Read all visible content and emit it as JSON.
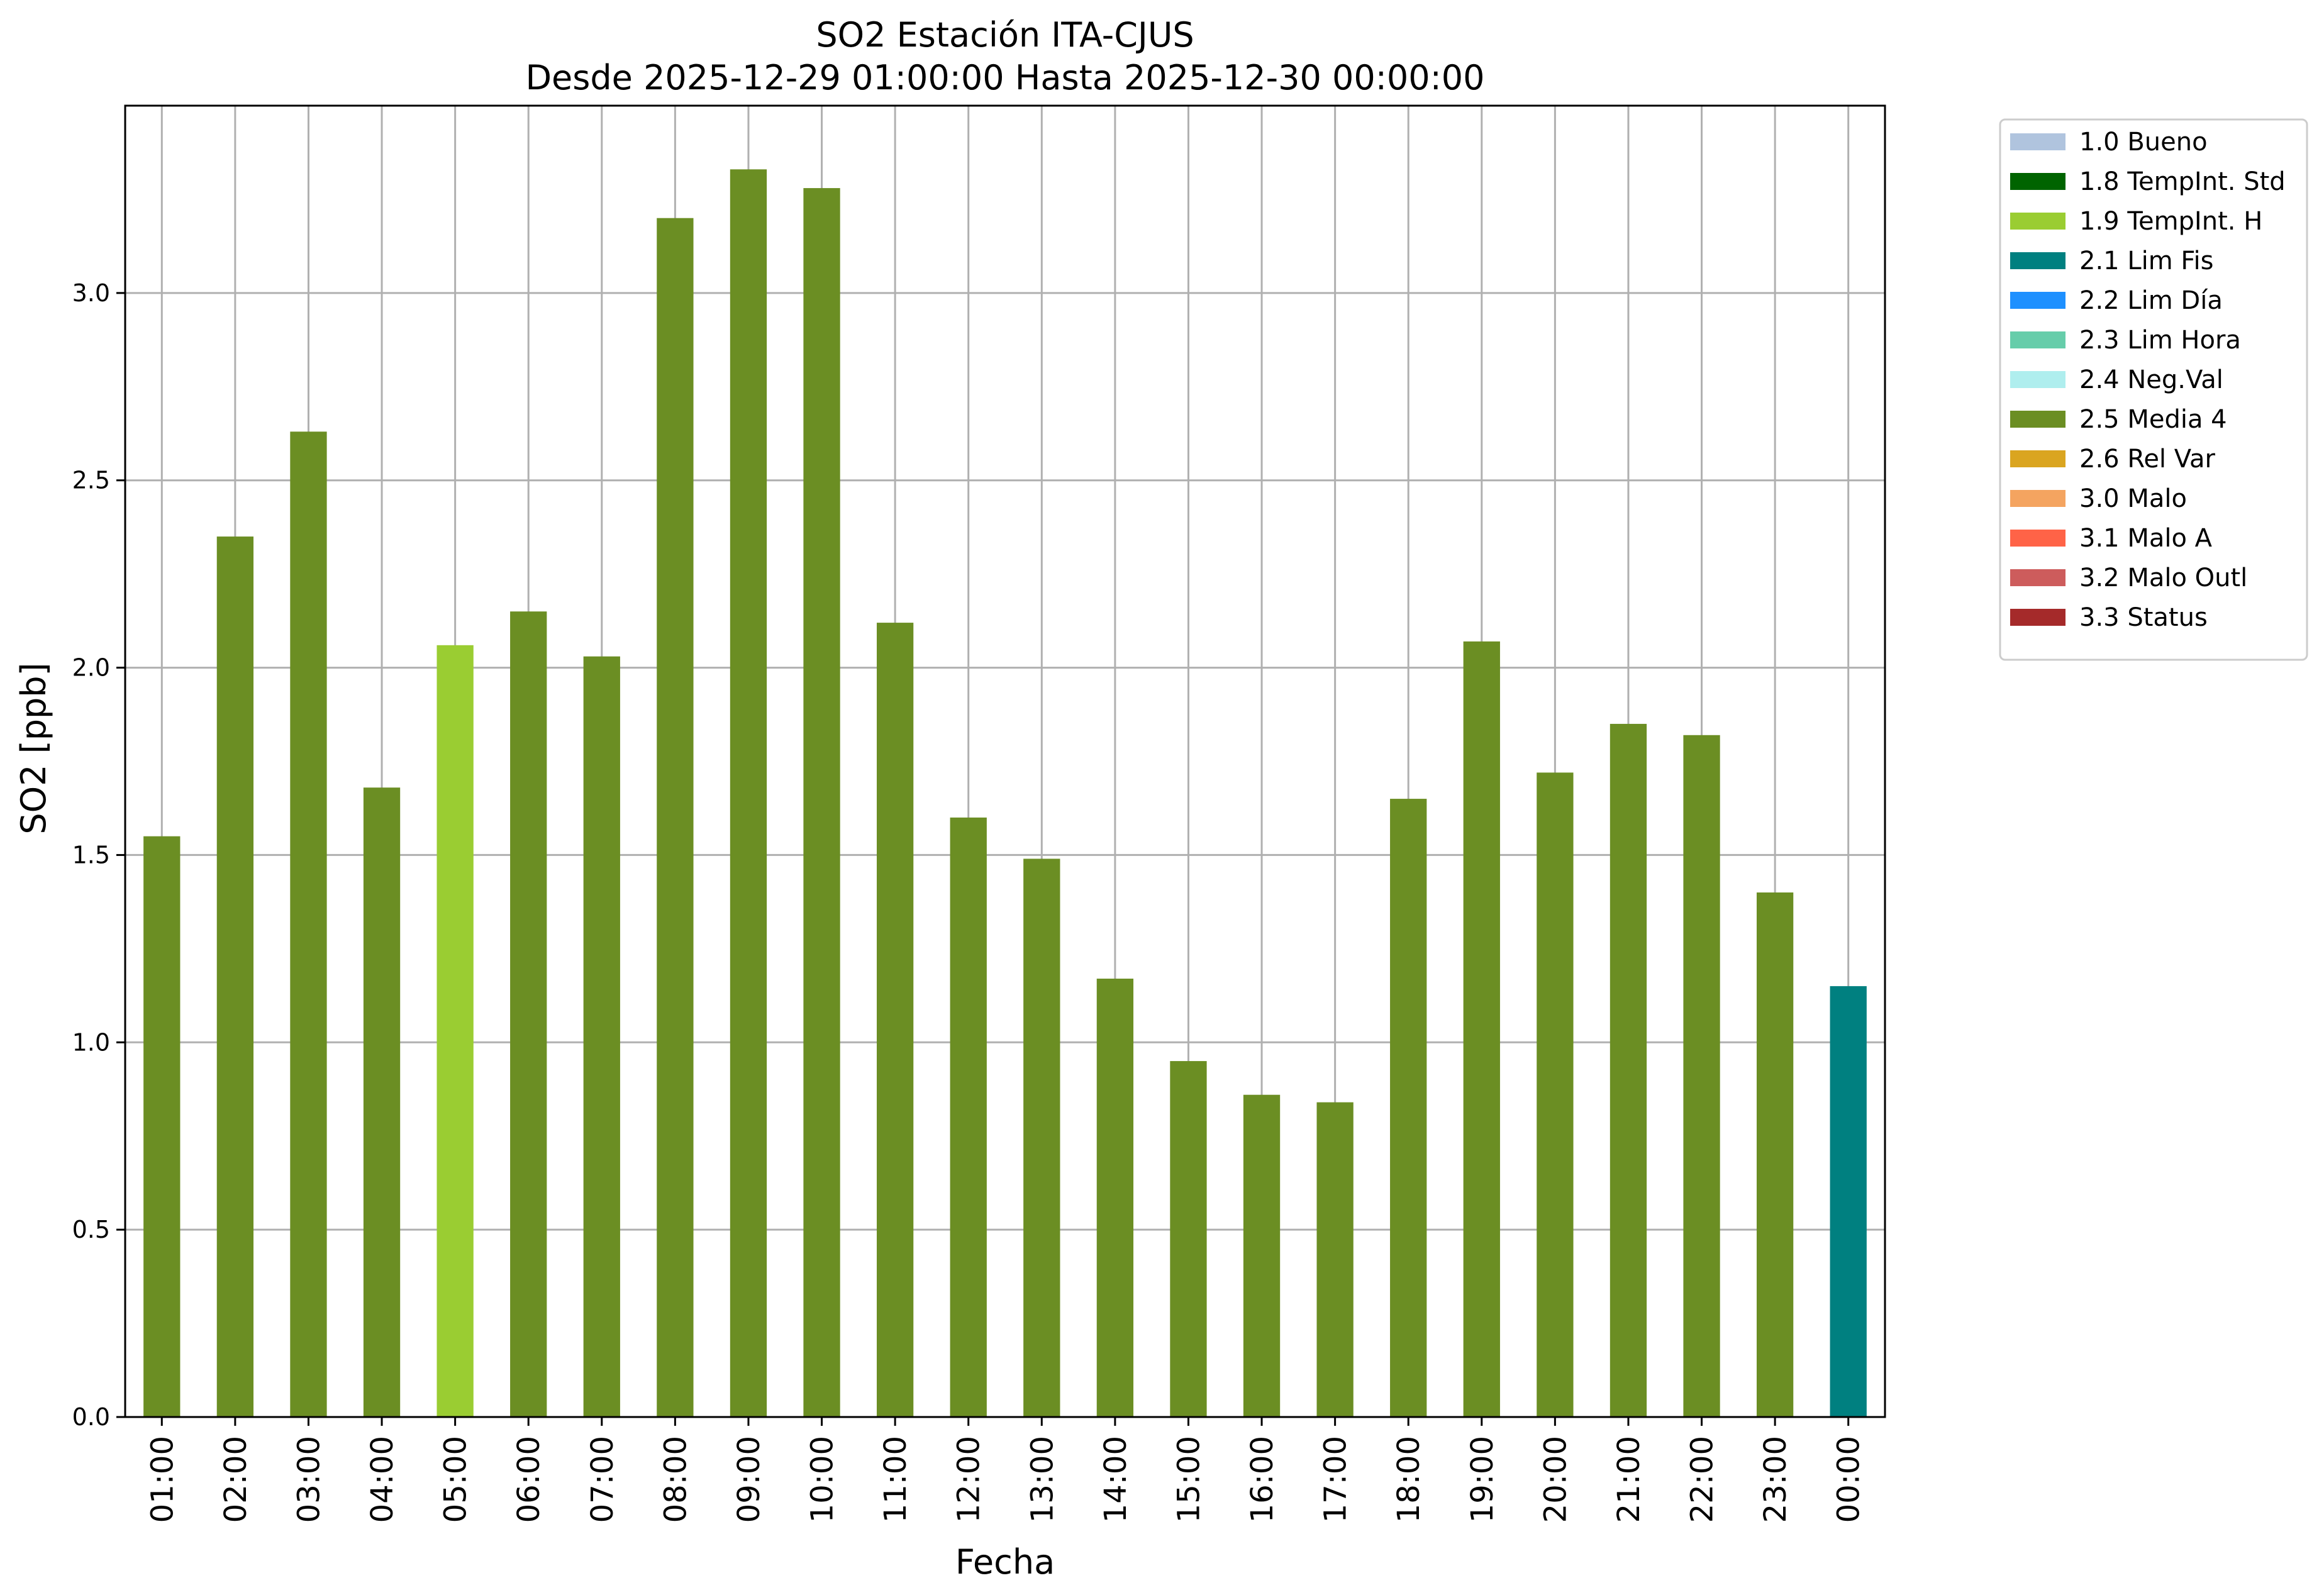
{
  "chart_data": {
    "type": "bar",
    "title": "SO2 Estación ITA-CJUS",
    "subtitle": "Desde 2025-12-29 01:00:00 Hasta 2025-12-30 00:00:00",
    "xlabel": "Fecha",
    "ylabel": "SO2 [ppb]",
    "ylim": [
      0,
      3.5
    ],
    "yticks": [
      "0.0",
      "0.5",
      "1.0",
      "1.5",
      "2.0",
      "2.5",
      "3.0"
    ],
    "grid": true,
    "legend_position": "outside-top-right",
    "categories": [
      "01:00",
      "02:00",
      "03:00",
      "04:00",
      "05:00",
      "06:00",
      "07:00",
      "08:00",
      "09:00",
      "10:00",
      "11:00",
      "12:00",
      "13:00",
      "14:00",
      "15:00",
      "16:00",
      "17:00",
      "18:00",
      "19:00",
      "20:00",
      "21:00",
      "22:00",
      "23:00",
      "00:00"
    ],
    "values": [
      1.55,
      2.35,
      2.63,
      1.68,
      2.06,
      2.15,
      2.03,
      3.2,
      3.33,
      3.28,
      2.12,
      1.6,
      1.49,
      1.17,
      0.95,
      0.86,
      0.84,
      1.65,
      2.07,
      1.72,
      1.85,
      1.82,
      1.4,
      1.15
    ],
    "flags": [
      "2.5 Media 4",
      "2.5 Media 4",
      "2.5 Media 4",
      "2.5 Media 4",
      "1.9 TempInt. H",
      "2.5 Media 4",
      "2.5 Media 4",
      "2.5 Media 4",
      "2.5 Media 4",
      "2.5 Media 4",
      "2.5 Media 4",
      "2.5 Media 4",
      "2.5 Media 4",
      "2.5 Media 4",
      "2.5 Media 4",
      "2.5 Media 4",
      "2.5 Media 4",
      "2.5 Media 4",
      "2.5 Media 4",
      "2.5 Media 4",
      "2.5 Media 4",
      "2.5 Media 4",
      "2.5 Media 4",
      "2.1 Lim Fis"
    ],
    "legend": [
      {
        "label": "1.0 Bueno",
        "color": "#b0c4de"
      },
      {
        "label": "1.8 TempInt. Std",
        "color": "#006400"
      },
      {
        "label": "1.9 TempInt. H",
        "color": "#9acd32"
      },
      {
        "label": "2.1 Lim Fis",
        "color": "#008080"
      },
      {
        "label": "2.2 Lim Día",
        "color": "#1e90ff"
      },
      {
        "label": "2.3 Lim Hora",
        "color": "#66cdaa"
      },
      {
        "label": "2.4 Neg.Val",
        "color": "#afeeee"
      },
      {
        "label": "2.5 Media 4",
        "color": "#6b8e23"
      },
      {
        "label": "2.6 Rel Var",
        "color": "#daa520"
      },
      {
        "label": "3.0 Malo",
        "color": "#f4a460"
      },
      {
        "label": "3.1 Malo A",
        "color": "#ff6347"
      },
      {
        "label": "3.2 Malo Outl",
        "color": "#cd5c5c"
      },
      {
        "label": "3.3 Status",
        "color": "#a52a2a"
      }
    ]
  }
}
